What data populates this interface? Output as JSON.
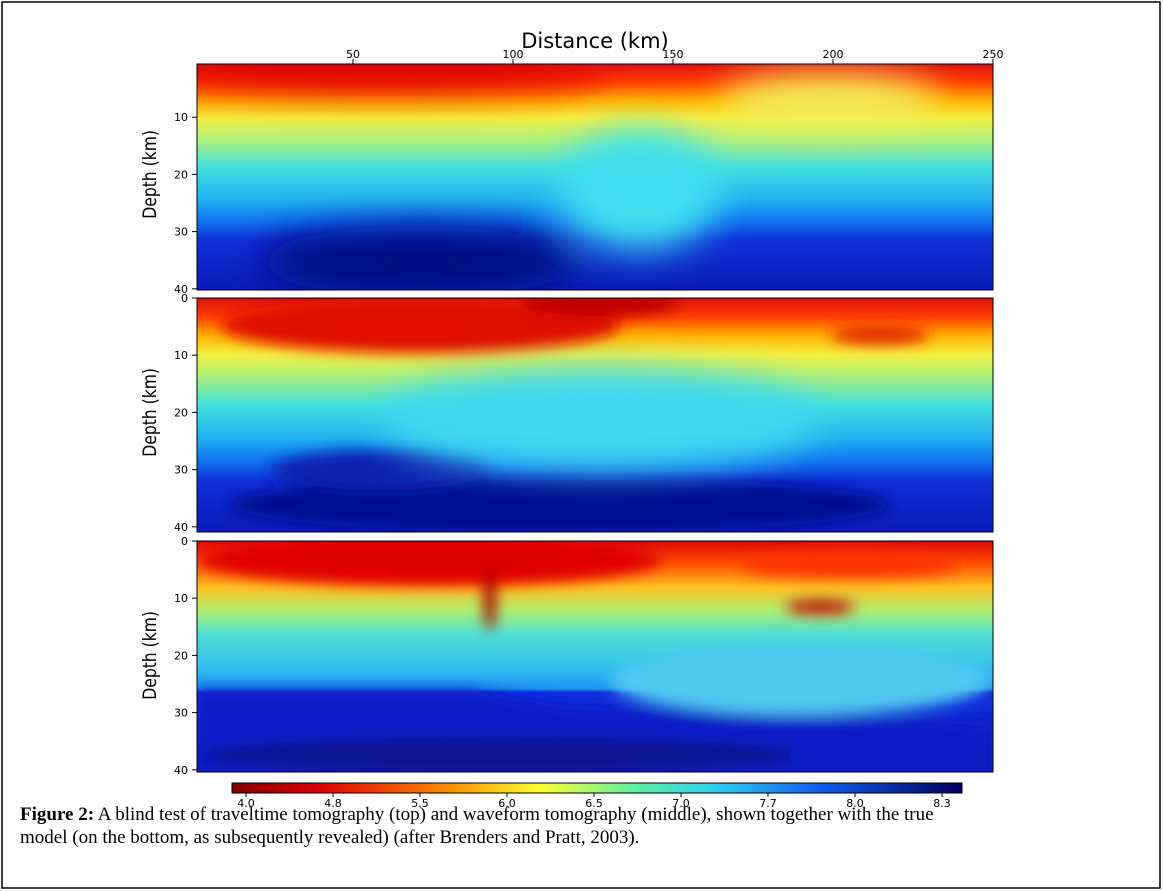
{
  "figure": {
    "x_axis_label": "Distance (km)",
    "xticks": [
      50,
      100,
      150,
      200,
      250
    ],
    "y_axis_label": "Depth (km)",
    "panels": [
      {
        "yticks": [
          10,
          20,
          30,
          40
        ]
      },
      {
        "yticks": [
          0,
          10,
          20,
          30,
          40
        ]
      },
      {
        "yticks": [
          0,
          10,
          20,
          30,
          40
        ]
      }
    ],
    "colorbar_ticks": [
      {
        "value": 4,
        "label": "4.0"
      },
      4.8,
      5.5,
      {
        "value": 6,
        "label": "6.0"
      },
      6.5,
      {
        "value": 7,
        "label": "7.0"
      },
      7.7,
      {
        "value": 8,
        "label": "8.0"
      },
      8.3
    ]
  },
  "caption": {
    "label": "Figure 2:",
    "text": "A blind test of traveltime tomography (top) and waveform tomography (middle), shown together with the true model (on the bottom, as subsequently revealed) (after Brenders and Pratt, 2003)."
  }
}
